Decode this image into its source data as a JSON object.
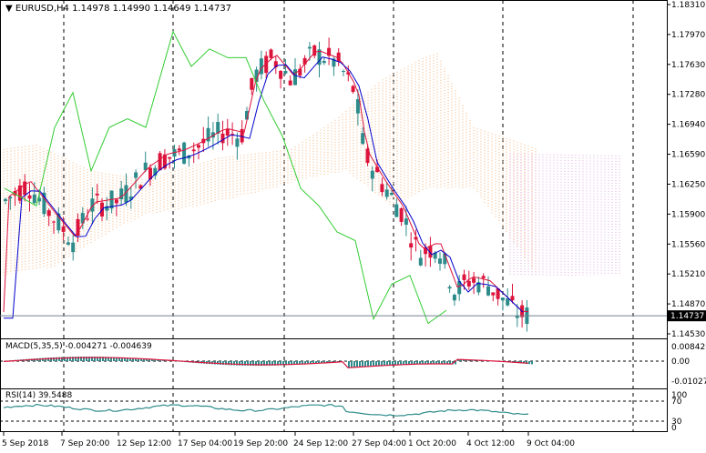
{
  "main_header": {
    "collapse_arrow": "▼",
    "symbol": "EURUSD,H4",
    "ohlc": "1.14978 1.14990 1.14649 1.14737"
  },
  "current_price": "1.14737",
  "price_axis": [
    "1.18310",
    "1.17970",
    "1.17630",
    "1.17280",
    "1.16940",
    "1.16590",
    "1.16250",
    "1.15900",
    "1.15560",
    "1.15210",
    "1.14870",
    "1.14530"
  ],
  "time_axis": [
    "5 Sep 2018",
    "7 Sep 20:00",
    "12 Sep 12:00",
    "17 Sep 04:00",
    "19 Sep 20:00",
    "24 Sep 12:00",
    "27 Sep 04:00",
    "1 Oct 20:00",
    "4 Oct 12:00",
    "9 Oct 04:00"
  ],
  "macd_panel": {
    "label": "MACD(5,35,5) -0.004271 -0.004639",
    "axis": [
      "0.008426",
      "0.00",
      "-0.010273"
    ]
  },
  "rsi_panel": {
    "label": "RSI(14) 39.5488",
    "axis": [
      "100",
      "70",
      "30",
      "0"
    ]
  },
  "colors": {
    "bull": "#2e8b8b",
    "bear": "#dc143c",
    "tenkan": "#dc143c",
    "kijun": "#0000cd",
    "chikou": "#32cd32",
    "cloud_a": "#f4a460",
    "cloud_b": "#d8a0d8",
    "rsi": "#2e8b8b"
  },
  "chart_data": {
    "type": "candlestick",
    "series": [
      {
        "name": "EURUSD,H4",
        "close_last": 1.14737
      }
    ],
    "ylim": [
      1.1453,
      1.1831
    ]
  }
}
